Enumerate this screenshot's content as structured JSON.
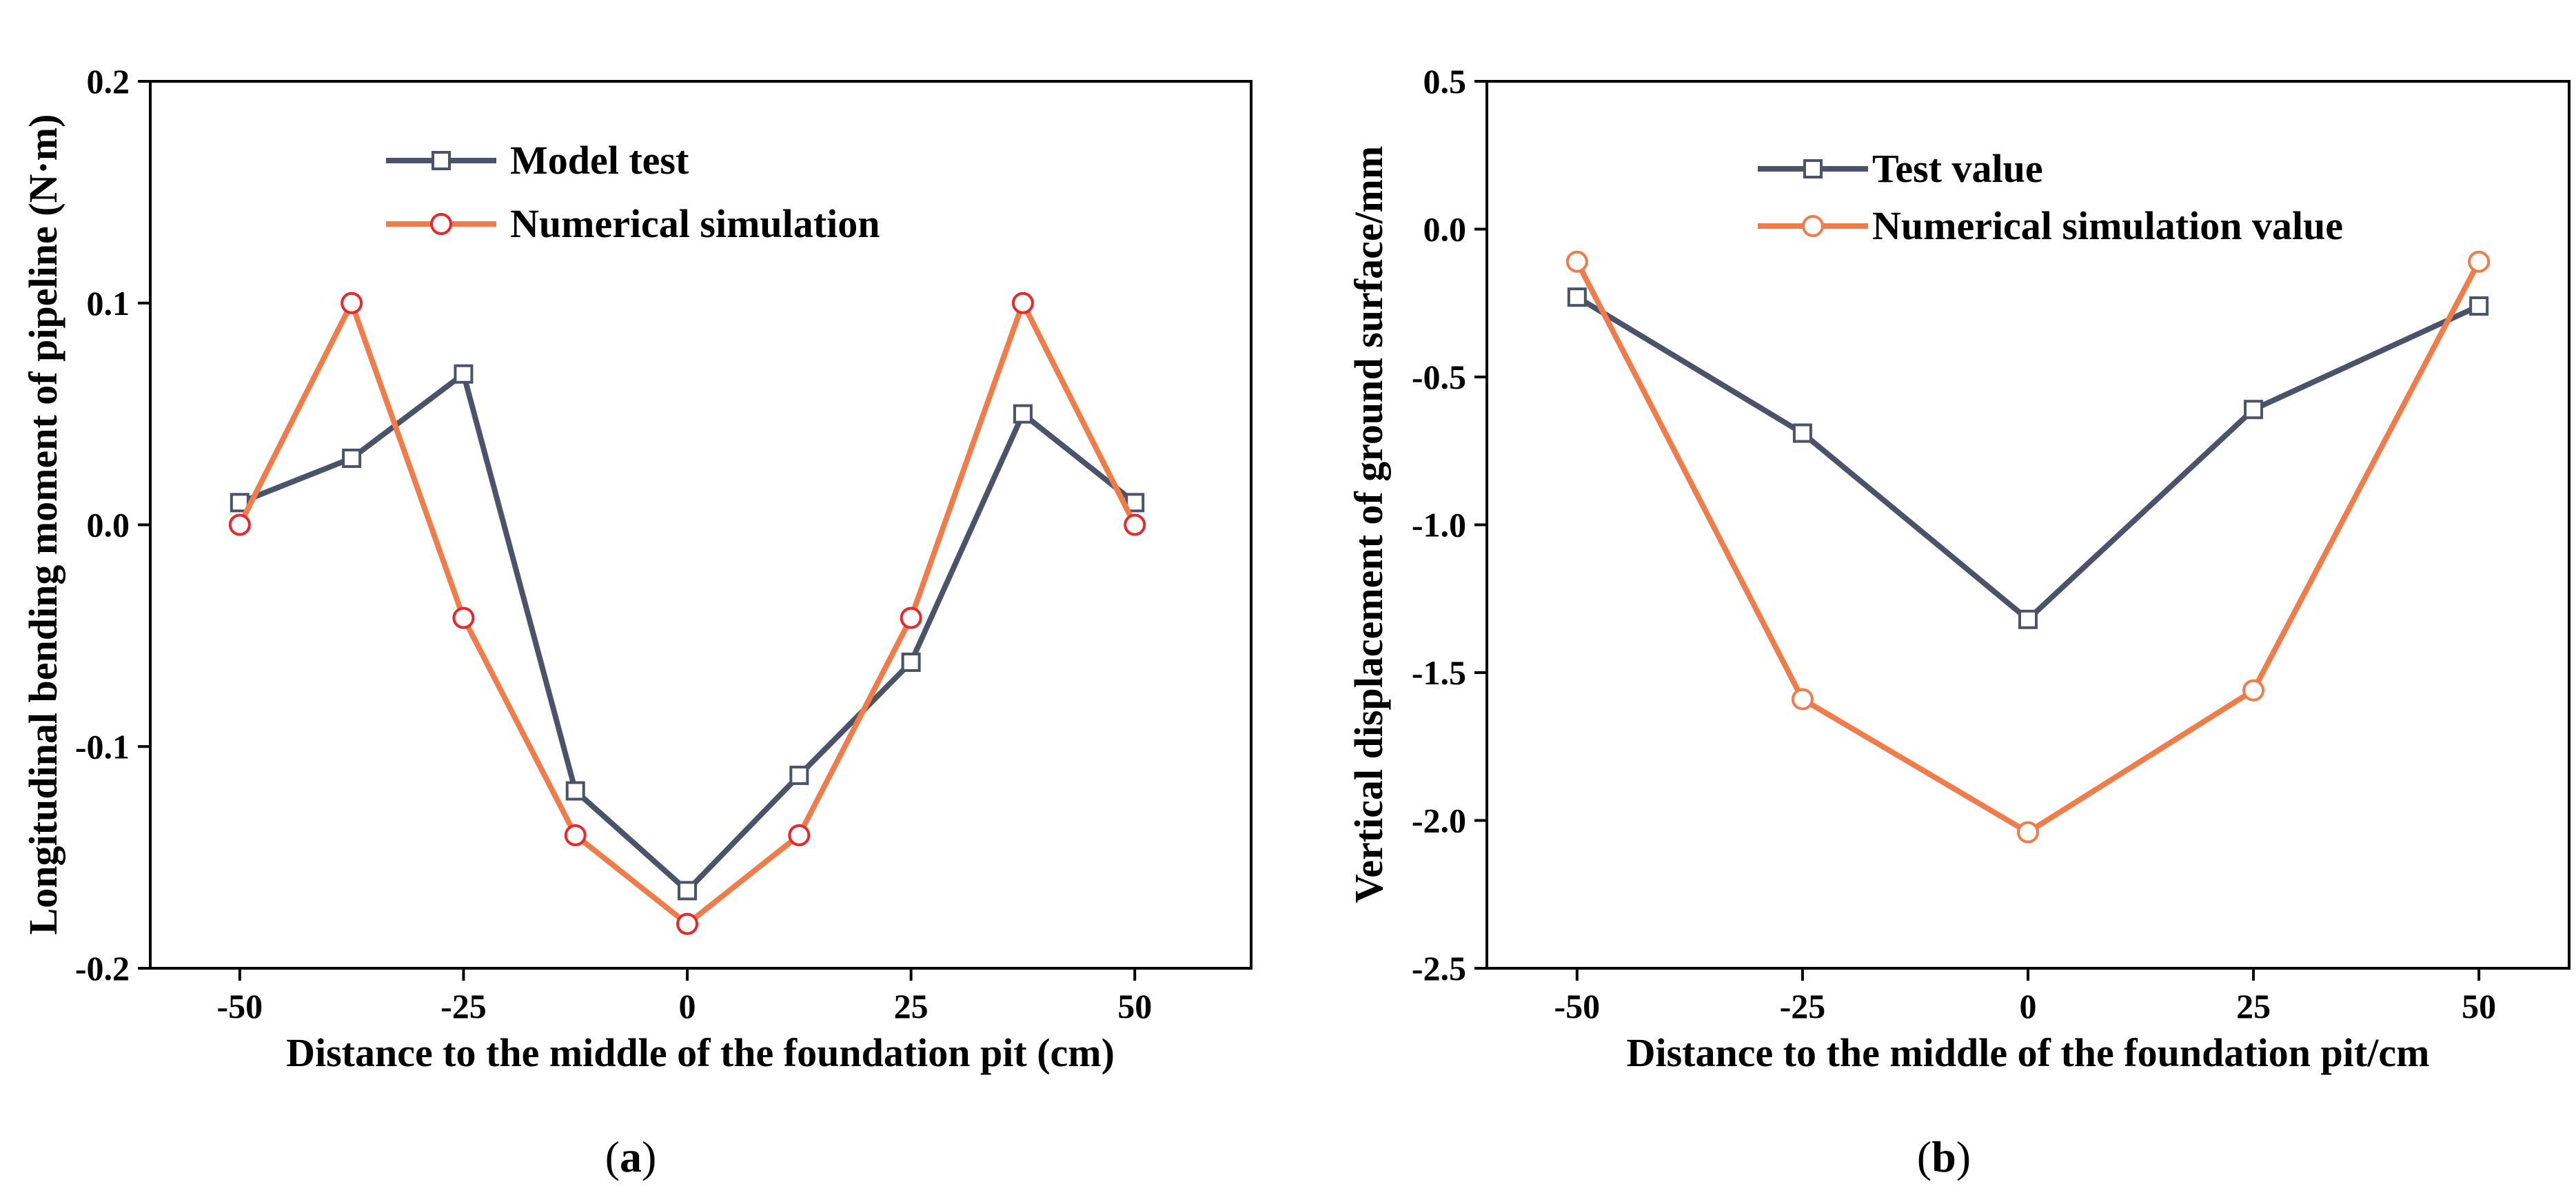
{
  "colors": {
    "model_series": "#4a5369",
    "sim_series": "#f07c4a",
    "sim_marker_a": "#e8282a",
    "sim_marker_b": "#f07c4a",
    "axis": "#000000"
  },
  "chart_data": [
    {
      "type": "line",
      "panel": "a",
      "panel_label": "(a)",
      "panel_label_letter": "a",
      "xlabel": "Distance to the middle of the foundation pit  (cm)",
      "ylabel": "Longitudinal bending moment of pipeline (N·m)",
      "xlim": [
        -60,
        63
      ],
      "ylim": [
        -0.2,
        0.2
      ],
      "xticks": [
        -50,
        -25,
        0,
        25,
        50
      ],
      "xtick_labels": [
        "-50",
        "-25",
        "0",
        "25",
        "50"
      ],
      "yticks": [
        -0.2,
        -0.1,
        0.0,
        0.1,
        0.2
      ],
      "ytick_labels": [
        "-0.2",
        "-0.1",
        "0.0",
        "0.1",
        "0.2"
      ],
      "legend_position": "top-center",
      "series": [
        {
          "name": "Model test",
          "marker": "square",
          "x": [
            -50,
            -37.5,
            -25,
            -12.5,
            0,
            12.5,
            25,
            37.5,
            50
          ],
          "y": [
            0.01,
            0.03,
            0.068,
            -0.12,
            -0.165,
            -0.113,
            -0.062,
            0.05,
            0.01
          ]
        },
        {
          "name": "Numerical simulation",
          "marker": "circle",
          "x": [
            -50,
            -37.5,
            -25,
            -12.5,
            0,
            12.5,
            25,
            37.5,
            50
          ],
          "y": [
            0.0,
            0.1,
            -0.042,
            -0.14,
            -0.18,
            -0.14,
            -0.042,
            0.1,
            0.0
          ]
        }
      ]
    },
    {
      "type": "line",
      "panel": "b",
      "panel_label": "(b)",
      "panel_label_letter": "b",
      "xlabel": "Distance to the middle of the foundation pit/cm",
      "ylabel": "Vertical displacement of ground surface/mm",
      "xlim": [
        -60,
        60
      ],
      "ylim": [
        -2.5,
        0.5
      ],
      "xticks": [
        -50,
        -25,
        0,
        25,
        50
      ],
      "xtick_labels": [
        "-50",
        "-25",
        "0",
        "25",
        "50"
      ],
      "yticks": [
        -2.5,
        -2.0,
        -1.5,
        -1.0,
        -0.5,
        0.0,
        0.5
      ],
      "ytick_labels": [
        "-2.5",
        "-2.0",
        "-1.5",
        "-1.0",
        "-0.5",
        "0.0",
        "0.5"
      ],
      "legend_position": "top-center",
      "series": [
        {
          "name": "Test value",
          "marker": "square",
          "x": [
            -50,
            -25,
            0,
            25,
            50
          ],
          "y": [
            -0.23,
            -0.69,
            -1.32,
            -0.61,
            -0.26
          ]
        },
        {
          "name": "Numerical simulation value",
          "marker": "circle",
          "x": [
            -50,
            -25,
            0,
            25,
            50
          ],
          "y": [
            -0.11,
            -1.59,
            -2.04,
            -1.56,
            -0.11
          ]
        }
      ]
    }
  ]
}
